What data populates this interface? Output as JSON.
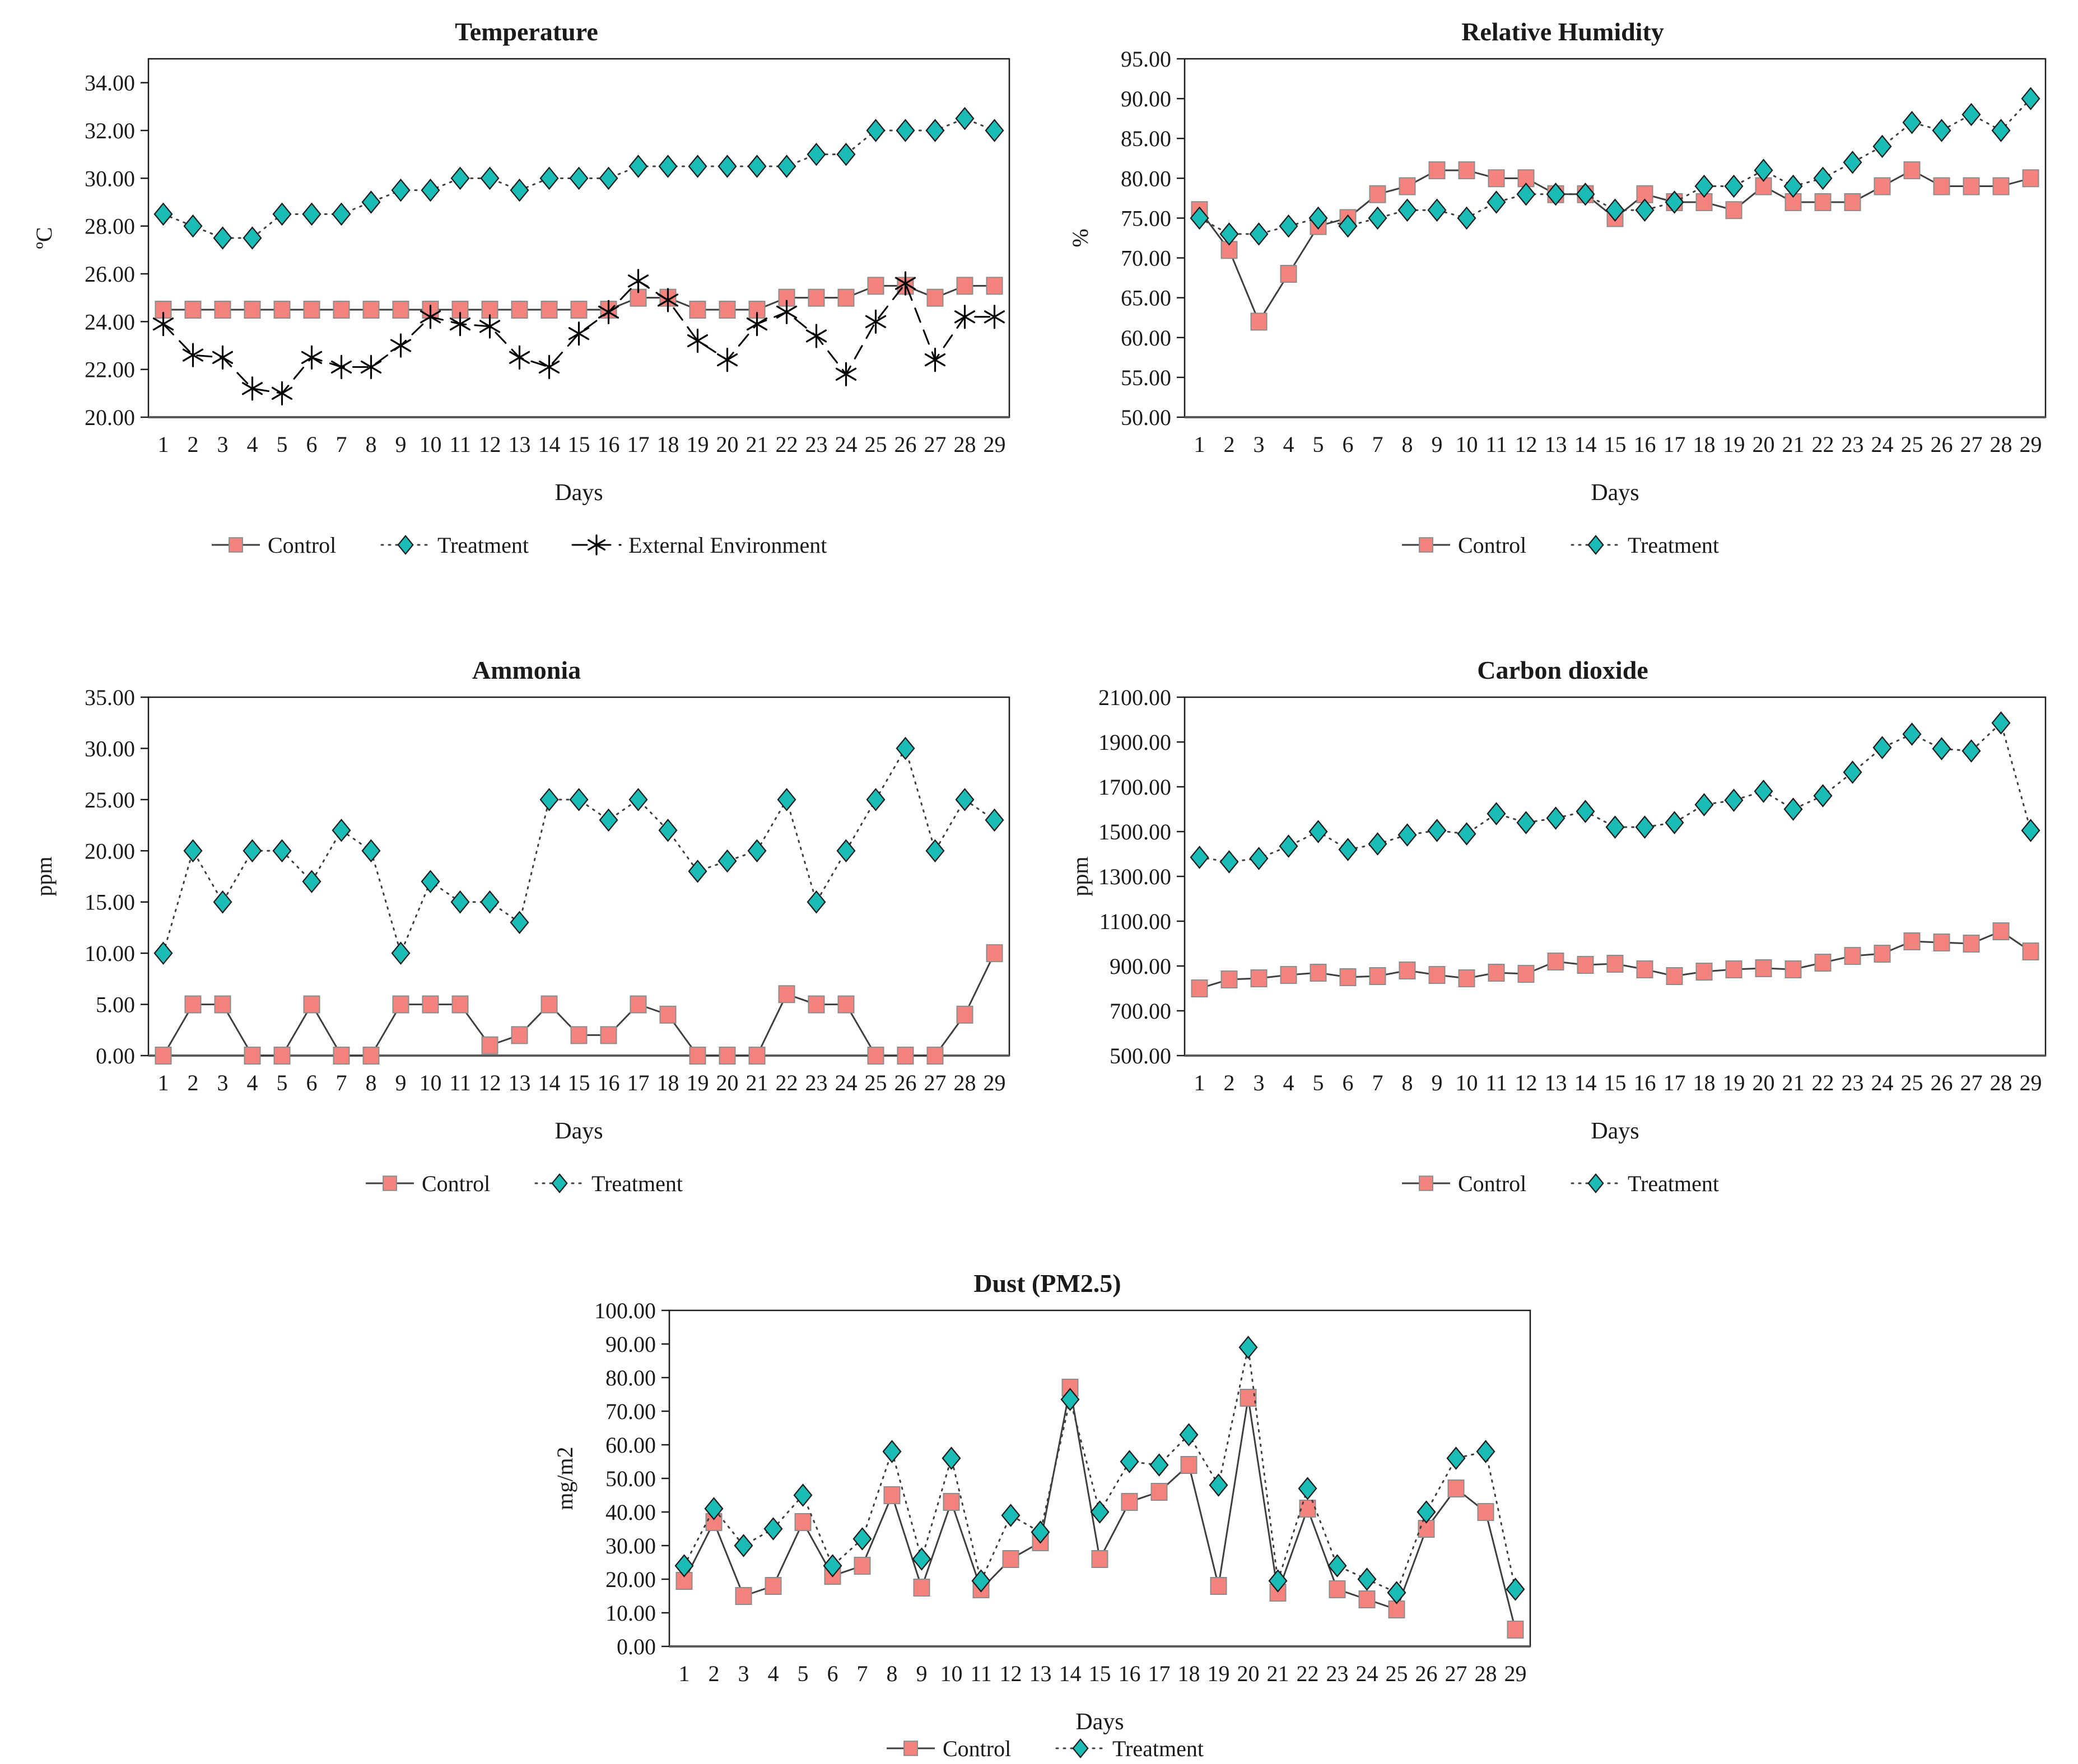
{
  "figure_background": "#ffffff",
  "palette": {
    "control_fill": "#F4837D",
    "control_edge": "#8c8c8c",
    "treatment_fill": "#1ABCB5",
    "treatment_edge": "#1a1a1a",
    "external_color": "#000000",
    "connector_line": "#3f3f3f",
    "axis_color": "#1a1a1a",
    "axis_bottom_color": "#595959"
  },
  "chart_data": [
    {
      "id": "temperature",
      "type": "line",
      "title": "Temperature",
      "xlabel": "Days",
      "ylabel": "ºC",
      "ylim": [
        20,
        35
      ],
      "yticks": [
        20,
        22,
        24,
        26,
        28,
        30,
        32,
        34
      ],
      "grid": false,
      "legend_position": "bottom",
      "categories": [
        1,
        2,
        3,
        4,
        5,
        6,
        7,
        8,
        9,
        10,
        11,
        12,
        13,
        14,
        15,
        16,
        17,
        18,
        19,
        20,
        21,
        22,
        23,
        24,
        25,
        26,
        27,
        28,
        29
      ],
      "series": [
        {
          "name": "Control",
          "marker": "square",
          "color": "#F4837D",
          "line": "solid",
          "values": [
            24.5,
            24.5,
            24.5,
            24.5,
            24.5,
            24.5,
            24.5,
            24.5,
            24.5,
            24.5,
            24.5,
            24.5,
            24.5,
            24.5,
            24.5,
            24.5,
            25,
            25,
            24.5,
            24.5,
            24.5,
            25,
            25,
            25,
            25.5,
            25.5,
            25,
            25.5,
            25.5
          ]
        },
        {
          "name": "Treatment",
          "marker": "diamond",
          "color": "#1ABCB5",
          "line": "dotted",
          "values": [
            28.5,
            28,
            27.5,
            27.5,
            28.5,
            28.5,
            28.5,
            29,
            29.5,
            29.5,
            30,
            30,
            29.5,
            30,
            30,
            30,
            30.5,
            30.5,
            30.5,
            30.5,
            30.5,
            30.5,
            31,
            31,
            32,
            32,
            32,
            32.5,
            32
          ]
        },
        {
          "name": "External Environment",
          "marker": "asterisk",
          "color": "#000000",
          "line": "dashed",
          "values": [
            23.9,
            22.6,
            22.5,
            21.2,
            21,
            22.5,
            22.1,
            22.1,
            23,
            24.2,
            23.9,
            23.8,
            22.5,
            22.1,
            23.5,
            24.4,
            25.7,
            24.9,
            23.2,
            22.4,
            23.9,
            24.4,
            23.4,
            21.8,
            24,
            25.6,
            22.4,
            24.2,
            24.2
          ]
        }
      ]
    },
    {
      "id": "relative-humidity",
      "type": "line",
      "title": "Relative Humidity",
      "xlabel": "Days",
      "ylabel": "%",
      "ylim": [
        50,
        95
      ],
      "yticks": [
        50,
        55,
        60,
        65,
        70,
        75,
        80,
        85,
        90,
        95
      ],
      "grid": false,
      "legend_position": "bottom",
      "categories": [
        1,
        2,
        3,
        4,
        5,
        6,
        7,
        8,
        9,
        10,
        11,
        12,
        13,
        14,
        15,
        16,
        17,
        18,
        19,
        20,
        21,
        22,
        23,
        24,
        25,
        26,
        27,
        28,
        29
      ],
      "series": [
        {
          "name": "Control",
          "marker": "square",
          "color": "#F4837D",
          "line": "solid",
          "values": [
            76,
            71,
            62,
            68,
            74,
            75,
            78,
            79,
            81,
            81,
            80,
            80,
            78,
            78,
            75,
            78,
            77,
            77,
            76,
            79,
            77,
            77,
            77,
            79,
            81,
            79,
            79,
            79,
            80
          ]
        },
        {
          "name": "Treatment",
          "marker": "diamond",
          "color": "#1ABCB5",
          "line": "dotted",
          "values": [
            75,
            73,
            73,
            74,
            75,
            74,
            75,
            76,
            76,
            75,
            77,
            78,
            78,
            78,
            76,
            76,
            77,
            79,
            79,
            81,
            79,
            80,
            82,
            84,
            87,
            86,
            88,
            86,
            90
          ]
        }
      ]
    },
    {
      "id": "ammonia",
      "type": "line",
      "title": "Ammonia",
      "xlabel": "Days",
      "ylabel": "ppm",
      "ylim": [
        0,
        35
      ],
      "yticks": [
        0,
        5,
        10,
        15,
        20,
        25,
        30,
        35
      ],
      "grid": false,
      "legend_position": "bottom",
      "categories": [
        1,
        2,
        3,
        4,
        5,
        6,
        7,
        8,
        9,
        10,
        11,
        12,
        13,
        14,
        15,
        16,
        17,
        18,
        19,
        20,
        21,
        22,
        23,
        24,
        25,
        26,
        27,
        28,
        29
      ],
      "series": [
        {
          "name": "Control",
          "marker": "square",
          "color": "#F4837D",
          "line": "solid",
          "values": [
            0,
            5,
            5,
            0,
            0,
            5,
            0,
            0,
            5,
            5,
            5,
            1,
            2,
            5,
            2,
            2,
            5,
            4,
            0,
            0,
            0,
            6,
            5,
            5,
            0,
            0,
            0,
            4,
            10
          ]
        },
        {
          "name": "Treatment",
          "marker": "diamond",
          "color": "#1ABCB5",
          "line": "dotted",
          "values": [
            10,
            20,
            15,
            20,
            20,
            17,
            22,
            20,
            10,
            17,
            15,
            15,
            13,
            25,
            25,
            23,
            25,
            22,
            18,
            19,
            20,
            25,
            15,
            20,
            25,
            30,
            20,
            25,
            23
          ]
        }
      ]
    },
    {
      "id": "carbon-dioxide",
      "type": "line",
      "title": "Carbon dioxide",
      "xlabel": "Days",
      "ylabel": "ppm",
      "ylim": [
        500,
        2100
      ],
      "yticks": [
        500,
        700,
        900,
        1100,
        1300,
        1500,
        1700,
        1900,
        2100
      ],
      "grid": false,
      "legend_position": "bottom",
      "categories": [
        1,
        2,
        3,
        4,
        5,
        6,
        7,
        8,
        9,
        10,
        11,
        12,
        13,
        14,
        15,
        16,
        17,
        18,
        19,
        20,
        21,
        22,
        23,
        24,
        25,
        26,
        27,
        28,
        29
      ],
      "series": [
        {
          "name": "Control",
          "marker": "square",
          "color": "#F4837D",
          "line": "solid",
          "values": [
            800,
            840,
            845,
            860,
            870,
            850,
            855,
            880,
            860,
            845,
            870,
            865,
            920,
            905,
            910,
            885,
            855,
            875,
            885,
            890,
            885,
            915,
            945,
            955,
            1010,
            1005,
            1000,
            1055,
            965
          ]
        },
        {
          "name": "Treatment",
          "marker": "diamond",
          "color": "#1ABCB5",
          "line": "dotted",
          "values": [
            1385,
            1365,
            1380,
            1435,
            1500,
            1420,
            1445,
            1485,
            1505,
            1490,
            1580,
            1540,
            1560,
            1590,
            1520,
            1520,
            1540,
            1620,
            1640,
            1680,
            1600,
            1660,
            1765,
            1875,
            1935,
            1870,
            1860,
            1985,
            1505
          ]
        }
      ]
    },
    {
      "id": "dust-pm25",
      "type": "line",
      "title": "Dust (PM2.5)",
      "xlabel": "Days",
      "ylabel": "mg/m2",
      "ylim": [
        0,
        100
      ],
      "yticks": [
        0,
        10,
        20,
        30,
        40,
        50,
        60,
        70,
        80,
        90,
        100
      ],
      "grid": false,
      "legend_position": "bottom",
      "categories": [
        1,
        2,
        3,
        4,
        5,
        6,
        7,
        8,
        9,
        10,
        11,
        12,
        13,
        14,
        15,
        16,
        17,
        18,
        19,
        20,
        21,
        22,
        23,
        24,
        25,
        26,
        27,
        28,
        29
      ],
      "series": [
        {
          "name": "Control",
          "marker": "square",
          "color": "#F4837D",
          "line": "solid",
          "values": [
            19.5,
            37,
            15,
            18,
            37,
            21,
            24,
            45,
            17.5,
            43,
            17,
            26,
            31,
            77,
            26,
            43,
            46,
            54,
            18,
            74,
            16,
            41,
            17,
            14,
            11,
            35,
            47,
            40,
            5
          ]
        },
        {
          "name": "Treatment",
          "marker": "diamond",
          "color": "#1ABCB5",
          "line": "dotted",
          "values": [
            24,
            41,
            30,
            35,
            45,
            24,
            32,
            58,
            26,
            56,
            19.5,
            39,
            34,
            73.5,
            40,
            55,
            54,
            63,
            48,
            89,
            19.5,
            47,
            24,
            20,
            16,
            40,
            56,
            58,
            17
          ]
        }
      ]
    }
  ]
}
